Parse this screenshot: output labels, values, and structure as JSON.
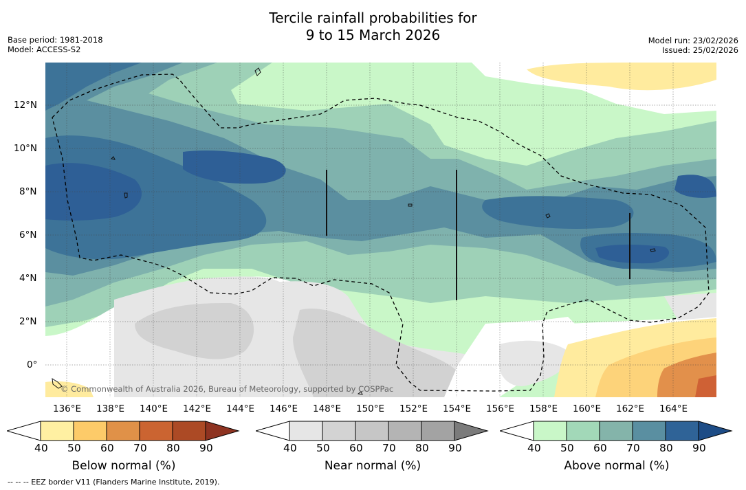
{
  "title": {
    "line1": "Tercile rainfall probabilities for",
    "line2": "9 to 15 March 2026"
  },
  "meta": {
    "base_period": "Base period: 1981-2018",
    "model": "Model: ACCESS-S2",
    "model_run": "Model run: 23/02/2026",
    "issued": "Issued: 25/02/2026"
  },
  "map": {
    "lat_ticks": [
      "12°N",
      "10°N",
      "8°N",
      "6°N",
      "4°N",
      "2°N",
      "0°"
    ],
    "lon_ticks": [
      "136°E",
      "138°E",
      "140°E",
      "142°E",
      "144°E",
      "146°E",
      "148°E",
      "150°E",
      "152°E",
      "154°E",
      "156°E",
      "158°E",
      "160°E",
      "162°E",
      "164°E"
    ],
    "attribution": "© Commonwealth of Australia 2026, Bureau of Meteorology, supported by COSPPac",
    "colors": {
      "above": [
        "#c9f7c8",
        "#9ed1b7",
        "#7fb2ad",
        "#5b8fa0",
        "#3d7398",
        "#2e5f96"
      ],
      "near": [
        "#e6e6e6",
        "#d2d2d2"
      ],
      "below": [
        "#ffeb9e",
        "#fdd37a",
        "#e2904b",
        "#cf6135"
      ]
    }
  },
  "colorbars": [
    {
      "title": "Below normal (%)",
      "labels": [
        "40",
        "50",
        "60",
        "70",
        "80",
        "90"
      ],
      "colors": [
        "#ffffff",
        "#fff0a2",
        "#fdcb69",
        "#e09148",
        "#cb6431",
        "#ac4a25",
        "#8e3321"
      ]
    },
    {
      "title": "Near normal (%)",
      "labels": [
        "40",
        "50",
        "60",
        "70",
        "80",
        "90"
      ],
      "colors": [
        "#ffffff",
        "#e6e6e6",
        "#d3d3d3",
        "#c6c6c6",
        "#b4b4b4",
        "#a3a3a3",
        "#7b7b7b"
      ]
    },
    {
      "title": "Above normal (%)",
      "labels": [
        "40",
        "50",
        "60",
        "70",
        "80",
        "90"
      ],
      "colors": [
        "#ffffff",
        "#c9f7c8",
        "#a2d8b8",
        "#84b4aa",
        "#5a8fa1",
        "#2f6397",
        "#1d4c86"
      ]
    }
  ],
  "footnote": "-- -- -- EEZ border V11 (Flanders Marine Institute, 2019)."
}
